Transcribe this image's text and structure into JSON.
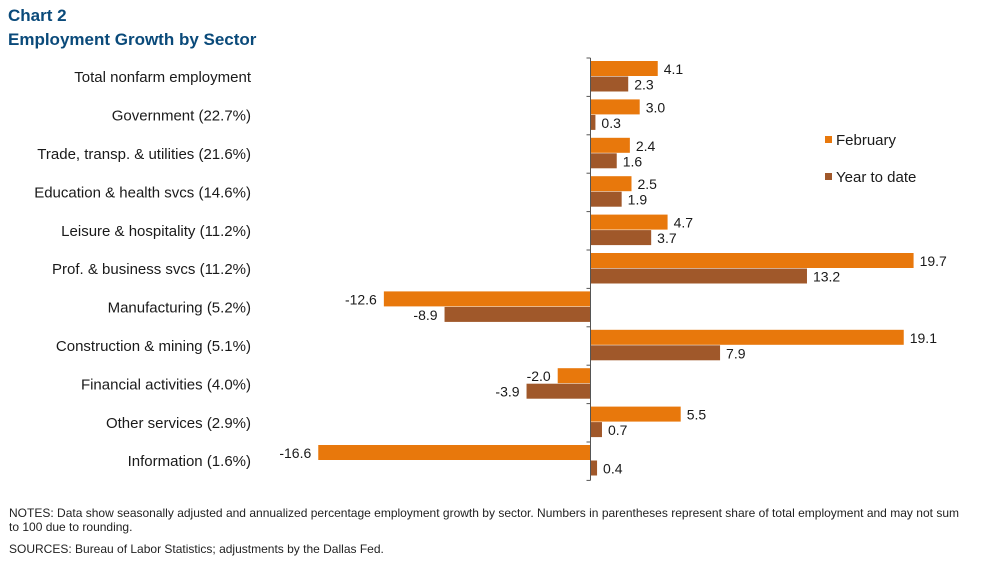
{
  "header": {
    "chart_number": "Chart 2",
    "title": "Employment Growth by Sector"
  },
  "notes": "NOTES: Data show seasonally adjusted and annualized percentage employment growth by sector. Numbers in parentheses represent share of total employment and may not sum to 100 due to rounding.",
  "sources": "SOURCES: Bureau of Labor Statistics; adjustments by the Dallas Fed.",
  "colors": {
    "february": "#e8780c",
    "year_to_date": "#a0582a"
  },
  "chart_data": {
    "type": "bar",
    "orientation": "horizontal",
    "title": "Employment Growth by Sector",
    "categories": [
      "Total nonfarm employment",
      "Government (22.7%)",
      "Trade, transp. & utilities (21.6%)",
      "Education & health svcs (14.6%)",
      "Leisure & hospitality (11.2%)",
      "Prof. & business svcs (11.2%)",
      "Manufacturing (5.2%)",
      "Construction & mining (5.1%)",
      "Financial activities (4.0%)",
      "Other services (2.9%)",
      "Information (1.6%)"
    ],
    "series": [
      {
        "name": "February",
        "values": [
          4.1,
          3.0,
          2.4,
          2.5,
          4.7,
          19.7,
          -12.6,
          19.1,
          -2.0,
          5.5,
          -16.6
        ],
        "labels": [
          "4.1",
          "3.0",
          "2.4",
          "2.5",
          "4.7",
          "19.7",
          "-12.6",
          "19.1",
          "-2.0",
          "5.5",
          "-16.6"
        ]
      },
      {
        "name": "Year to date",
        "values": [
          2.3,
          0.3,
          1.6,
          1.9,
          3.7,
          13.2,
          -8.9,
          7.9,
          -3.9,
          0.7,
          0.4
        ],
        "labels": [
          "2.3",
          "0.3",
          "1.6",
          "1.9",
          "3.7",
          "13.2",
          "-8.9",
          "7.9",
          "-3.9",
          "0.7",
          "0.4"
        ]
      }
    ],
    "legend_position": "right",
    "grid": false
  }
}
